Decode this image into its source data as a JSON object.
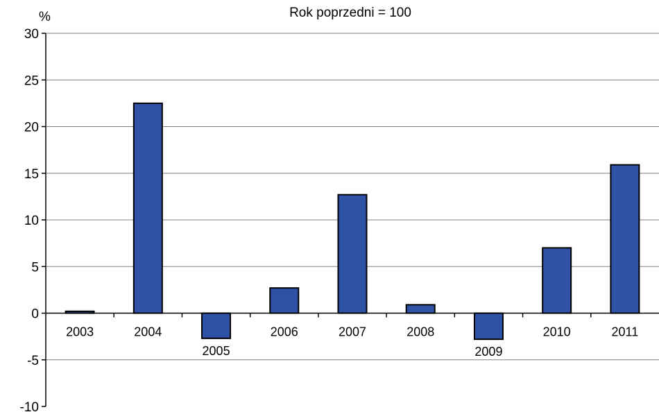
{
  "chart_data": {
    "type": "bar",
    "title": "Rok poprzedni = 100",
    "ylabel": "%",
    "xlabel": "",
    "categories": [
      "2003",
      "2004",
      "2005",
      "2006",
      "2007",
      "2008",
      "2009",
      "2010",
      "2011"
    ],
    "values": [
      0.2,
      22.5,
      -2.7,
      2.7,
      12.7,
      0.9,
      -2.8,
      7.0,
      15.9
    ],
    "ylim": [
      -10,
      30
    ],
    "yticks": [
      "30",
      "25",
      "20",
      "15",
      "10",
      "5",
      "0",
      "-5",
      "-10"
    ],
    "grid": true,
    "legend": "none",
    "bar_color": "#2f52a6",
    "bar_edge_color": "#000000",
    "gridline_color": "#808080"
  }
}
